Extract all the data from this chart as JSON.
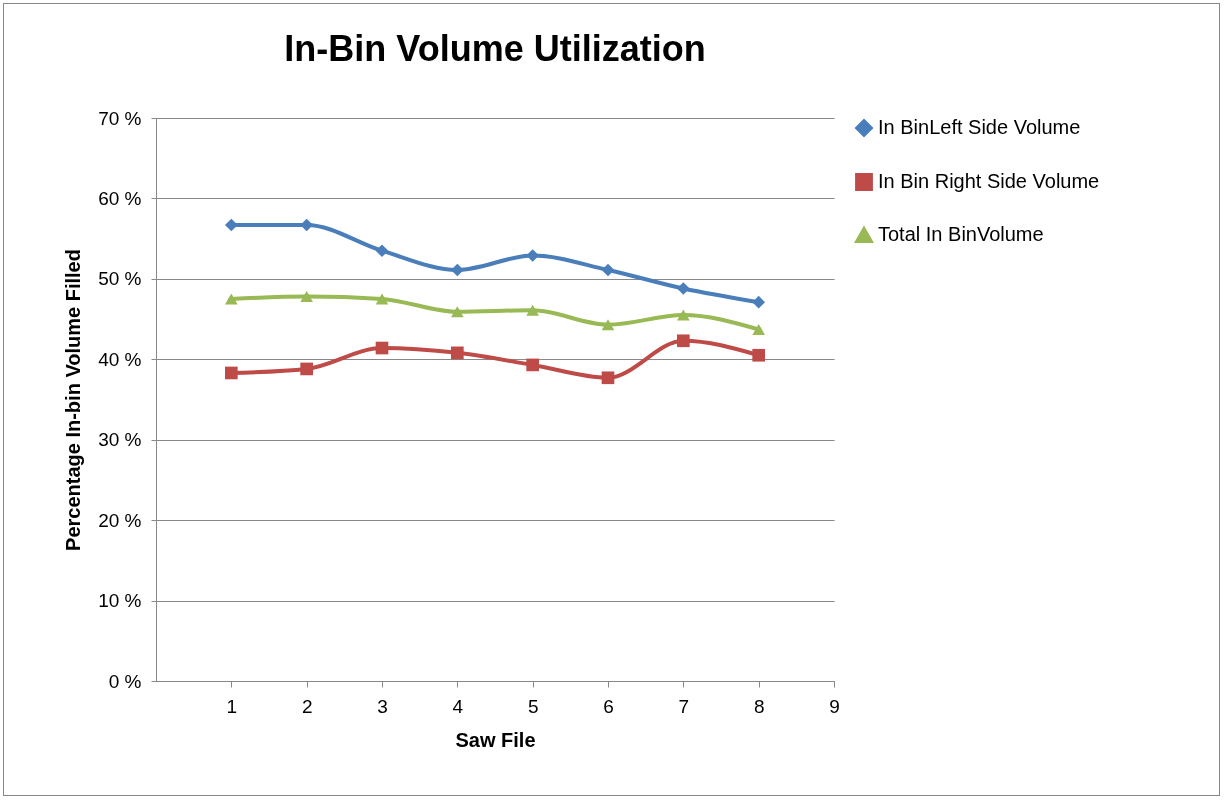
{
  "chart_data": {
    "type": "line",
    "title": "In-Bin Volume Utilization",
    "xlabel": "Saw File",
    "ylabel": "Percentage In-bin Volume Filled",
    "x": [
      1,
      2,
      3,
      4,
      5,
      6,
      7,
      8
    ],
    "series": [
      {
        "name": "In BinLeft Side Volume",
        "color": "#4a7ebb",
        "marker": "diamond",
        "values": [
          56.7,
          56.7,
          53.5,
          51.1,
          52.9,
          51.1,
          48.8,
          47.1
        ]
      },
      {
        "name": "In Bin Right Side Volume",
        "color": "#be4b48",
        "marker": "square",
        "values": [
          38.3,
          38.8,
          41.4,
          40.8,
          39.3,
          37.7,
          42.3,
          40.5
        ]
      },
      {
        "name": "Total In BinVolume",
        "color": "#98b954",
        "marker": "triangle",
        "values": [
          47.5,
          47.8,
          47.5,
          45.9,
          46.1,
          44.3,
          45.5,
          43.7
        ]
      }
    ],
    "xlim": [
      0,
      9
    ],
    "xticks": [
      1,
      2,
      3,
      4,
      5,
      6,
      7,
      8,
      9
    ],
    "ylim": [
      0,
      70
    ],
    "yticks": [
      {
        "value": 0,
        "label": "0 %"
      },
      {
        "value": 10,
        "label": "10 %"
      },
      {
        "value": 20,
        "label": "20 %"
      },
      {
        "value": 30,
        "label": "30 %"
      },
      {
        "value": 40,
        "label": "40 %"
      },
      {
        "value": 50,
        "label": "50 %"
      },
      {
        "value": 60,
        "label": "60 %"
      },
      {
        "value": 70,
        "label": "70 %"
      }
    ],
    "grid": "y",
    "legend": "right",
    "line_style": "solid"
  }
}
